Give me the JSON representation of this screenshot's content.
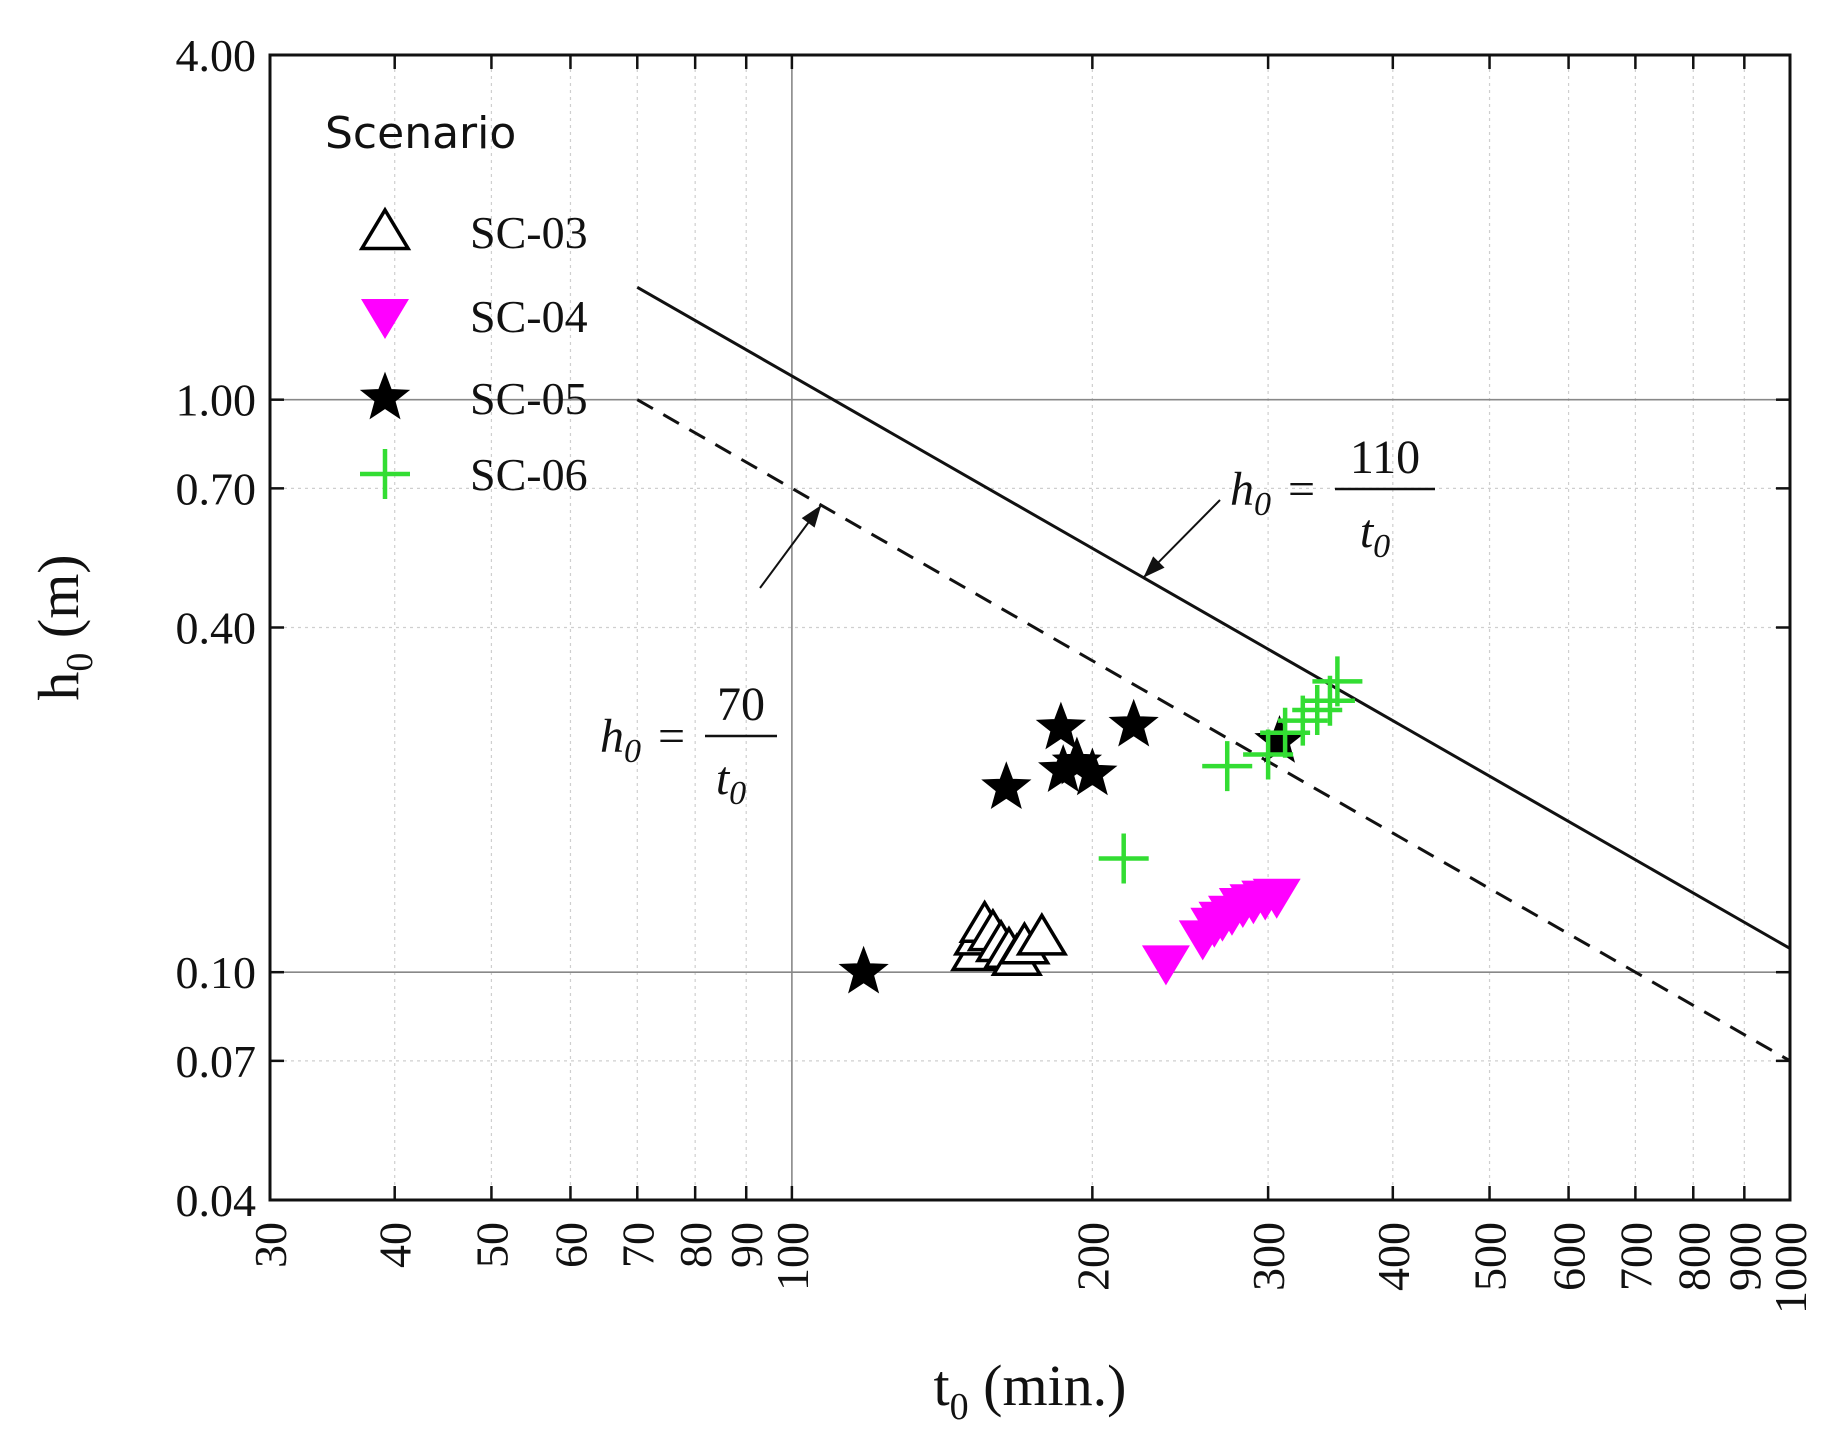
{
  "chart_data": {
    "type": "scatter",
    "xscale": "log",
    "yscale": "log",
    "xlim": [
      30,
      1000
    ],
    "ylim": [
      0.04,
      4.0
    ],
    "xlabel": {
      "main": "t",
      "sub": "0",
      "rest": " (min.)"
    },
    "ylabel": {
      "main": "h",
      "sub": "0",
      "rest": " (m)"
    },
    "x_ticks": [
      30,
      40,
      50,
      60,
      70,
      80,
      90,
      100,
      200,
      300,
      400,
      500,
      600,
      700,
      800,
      900,
      1000
    ],
    "x_tick_labels": [
      "30",
      "40",
      "50",
      "60",
      "70",
      "80",
      "90",
      "100",
      "200",
      "300",
      "400",
      "500",
      "600",
      "700",
      "800",
      "900",
      "1000"
    ],
    "y_ticks": [
      0.04,
      0.07,
      0.1,
      0.4,
      0.7,
      1.0,
      4.0
    ],
    "y_tick_labels": [
      "0.04",
      "0.07",
      "0.10",
      "0.40",
      "0.70",
      "1.00",
      "4.00"
    ],
    "major_grid_x": [
      100
    ],
    "major_grid_y": [
      0.1,
      1.0
    ],
    "legend": {
      "title": "Scenario",
      "position": "top-left",
      "entries": [
        "SC-03",
        "SC-04",
        "SC-05",
        "SC-06"
      ]
    },
    "series": [
      {
        "name": "SC-03",
        "marker": "triangle-up-open",
        "color": "#000000",
        "points": [
          [
            153,
            0.108
          ],
          [
            154,
            0.115
          ],
          [
            156,
            0.121
          ],
          [
            159,
            0.117
          ],
          [
            162,
            0.112
          ],
          [
            165,
            0.109
          ],
          [
            168,
            0.106
          ],
          [
            171,
            0.111
          ],
          [
            178,
            0.115
          ]
        ]
      },
      {
        "name": "SC-04",
        "marker": "triangle-down-filled",
        "color": "#ff00ff",
        "points": [
          [
            237,
            0.104
          ],
          [
            258,
            0.115
          ],
          [
            265,
            0.121
          ],
          [
            270,
            0.124
          ],
          [
            276,
            0.127
          ],
          [
            283,
            0.131
          ],
          [
            290,
            0.133
          ],
          [
            298,
            0.135
          ],
          [
            306,
            0.136
          ]
        ]
      },
      {
        "name": "SC-05",
        "marker": "star-filled",
        "color": "#000000",
        "points": [
          [
            118,
            0.1
          ],
          [
            164,
            0.21
          ],
          [
            186,
            0.267
          ],
          [
            187,
            0.225
          ],
          [
            193,
            0.232
          ],
          [
            200,
            0.222
          ],
          [
            220,
            0.27
          ],
          [
            308,
            0.253
          ]
        ]
      },
      {
        "name": "SC-06",
        "marker": "plus",
        "color": "#33dd33",
        "points": [
          [
            215,
            0.158
          ],
          [
            273,
            0.229
          ],
          [
            300,
            0.24
          ],
          [
            312,
            0.262
          ],
          [
            325,
            0.275
          ],
          [
            336,
            0.287
          ],
          [
            346,
            0.298
          ],
          [
            352,
            0.322
          ]
        ]
      }
    ],
    "lines": [
      {
        "name": "upper",
        "constant": 110,
        "style": "solid",
        "x_range": [
          70,
          1000
        ],
        "label": {
          "lhs": "h",
          "lhs_sub": "0",
          "num": "110",
          "den": "t",
          "den_sub": "0"
        }
      },
      {
        "name": "lower",
        "constant": 70,
        "style": "dashed",
        "x_range": [
          70,
          1000
        ],
        "label": {
          "lhs": "h",
          "lhs_sub": "0",
          "num": "70",
          "den": "t",
          "den_sub": "0"
        }
      }
    ]
  }
}
